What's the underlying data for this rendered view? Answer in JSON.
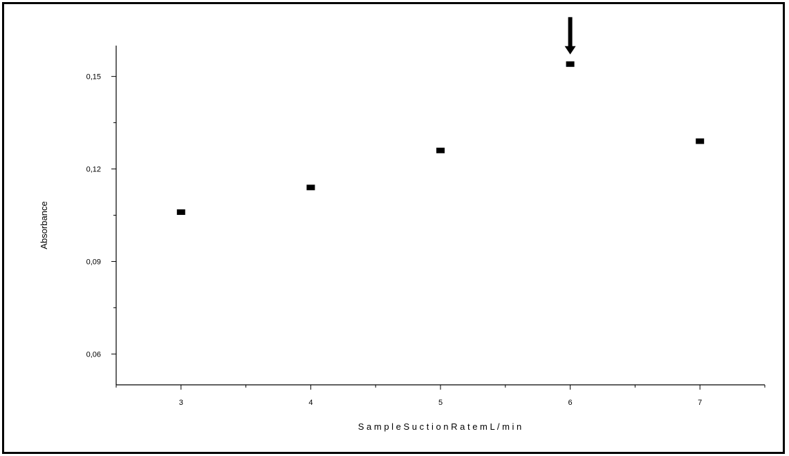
{
  "chart_data": {
    "type": "scatter",
    "title": "",
    "xlabel": "S a m p l e  S u c t i o n  R a t e    m L / m i n",
    "ylabel": "Absorbance",
    "x": [
      3,
      4,
      5,
      6,
      7
    ],
    "y": [
      0.106,
      0.114,
      0.126,
      0.154,
      0.129
    ],
    "xlim": [
      2.5,
      7.5
    ],
    "ylim": [
      0.05,
      0.16
    ],
    "xticks": [
      3,
      4,
      5,
      6,
      7
    ],
    "xtick_labels": [
      "3",
      "4",
      "5",
      "6",
      "7"
    ],
    "yticks": [
      0.06,
      0.09,
      0.12,
      0.15
    ],
    "ytick_labels": [
      "0,06",
      "0,09",
      "0,12",
      "0,15"
    ],
    "grid": false,
    "annotations": [
      {
        "type": "arrow-down",
        "x": 6
      }
    ],
    "marker_color": "#000000"
  }
}
